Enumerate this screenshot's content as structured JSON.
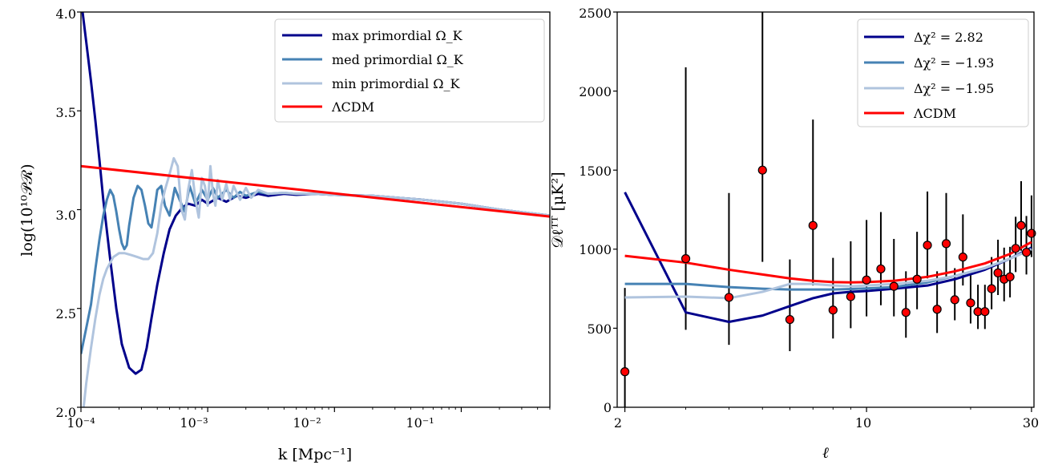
{
  "chart_data": [
    {
      "type": "line",
      "xscale": "log",
      "xlim": [
        0.0001,
        0.5
      ],
      "ylim": [
        2.0,
        4.0
      ],
      "xlabel": "k [Mpc⁻¹]",
      "ylabel": "log(10¹⁰𝒫ℛ)",
      "xticks": [
        0.0001,
        0.001,
        0.01,
        0.1
      ],
      "xtick_labels": [
        "10⁻⁴",
        "10⁻³",
        "10⁻²",
        "10⁻¹"
      ],
      "yticks": [
        2.0,
        2.5,
        3.0,
        3.5,
        4.0
      ],
      "ytick_labels": [
        "2.0",
        "2.5",
        "3.0",
        "3.5",
        "4.0"
      ],
      "legend_position": "top-right",
      "series": [
        {
          "name": "max primordial Ω_K",
          "color": "#00008b",
          "x": [
            0.000103,
            0.00011,
            0.00012,
            0.00013,
            0.00014,
            0.00015,
            0.00017,
            0.00019,
            0.00021,
            0.00024,
            0.00027,
            0.0003,
            0.00033,
            0.00036,
            0.0004,
            0.00045,
            0.0005,
            0.00056,
            0.00063,
            0.0007,
            0.0008,
            0.0009,
            0.001,
            0.0012,
            0.0014,
            0.0017,
            0.002,
            0.0025,
            0.003,
            0.004,
            0.005,
            0.007,
            0.01,
            0.02,
            0.05,
            0.1,
            0.2,
            0.5
          ],
          "y": [
            4.0,
            3.85,
            3.65,
            3.45,
            3.25,
            3.05,
            2.75,
            2.5,
            2.32,
            2.2,
            2.17,
            2.19,
            2.3,
            2.45,
            2.62,
            2.78,
            2.9,
            2.97,
            3.01,
            3.03,
            3.02,
            3.05,
            3.03,
            3.06,
            3.04,
            3.07,
            3.06,
            3.08,
            3.07,
            3.08,
            3.075,
            3.08,
            3.075,
            3.07,
            3.05,
            3.03,
            3.0,
            2.97
          ]
        },
        {
          "name": "med primordial Ω_K",
          "color": "#4682b4",
          "x": [
            0.0001,
            0.00011,
            0.00012,
            0.00013,
            0.00014,
            0.00015,
            0.00016,
            0.00017,
            0.00018,
            0.00019,
            0.0002,
            0.00021,
            0.00022,
            0.00023,
            0.00024,
            0.00026,
            0.00028,
            0.0003,
            0.00032,
            0.00034,
            0.00036,
            0.00038,
            0.0004,
            0.00043,
            0.00046,
            0.0005,
            0.00055,
            0.0006,
            0.00066,
            0.00072,
            0.0008,
            0.0009,
            0.001,
            0.0011,
            0.0012,
            0.0014,
            0.0016,
            0.0018,
            0.002,
            0.0025,
            0.003,
            0.004,
            0.005,
            0.007,
            0.01,
            0.02,
            0.05,
            0.1,
            0.2,
            0.5
          ],
          "y": [
            2.27,
            2.4,
            2.52,
            2.7,
            2.85,
            2.97,
            3.05,
            3.1,
            3.07,
            2.99,
            2.9,
            2.83,
            2.8,
            2.82,
            2.92,
            3.06,
            3.12,
            3.1,
            3.02,
            2.93,
            2.91,
            3.0,
            3.1,
            3.12,
            3.02,
            2.97,
            3.11,
            3.05,
            2.99,
            3.12,
            3.03,
            3.1,
            3.05,
            3.11,
            3.06,
            3.1,
            3.06,
            3.09,
            3.07,
            3.09,
            3.08,
            3.085,
            3.08,
            3.08,
            3.075,
            3.07,
            3.05,
            3.03,
            3.0,
            2.97
          ]
        },
        {
          "name": "min primordial Ω_K",
          "color": "#b0c4de",
          "x": [
            0.000105,
            0.00011,
            0.00012,
            0.00013,
            0.00014,
            0.00015,
            0.00016,
            0.00018,
            0.0002,
            0.00022,
            0.00025,
            0.00028,
            0.00031,
            0.00034,
            0.00037,
            0.0004,
            0.00043,
            0.00046,
            0.0005,
            0.00054,
            0.00058,
            0.00062,
            0.00066,
            0.0007,
            0.00075,
            0.0008,
            0.00085,
            0.0009,
            0.00095,
            0.001,
            0.00105,
            0.0011,
            0.00115,
            0.0012,
            0.0013,
            0.0014,
            0.0015,
            0.0016,
            0.0018,
            0.002,
            0.0022,
            0.0025,
            0.003,
            0.004,
            0.005,
            0.007,
            0.01,
            0.02,
            0.05,
            0.1,
            0.2,
            0.5
          ],
          "y": [
            2.0,
            2.12,
            2.3,
            2.45,
            2.57,
            2.65,
            2.7,
            2.76,
            2.78,
            2.78,
            2.77,
            2.76,
            2.75,
            2.75,
            2.78,
            2.88,
            3.02,
            3.1,
            3.18,
            3.26,
            3.22,
            3.0,
            2.95,
            3.1,
            3.2,
            3.05,
            2.96,
            3.16,
            3.12,
            3.02,
            3.22,
            3.08,
            3.02,
            3.15,
            3.05,
            3.13,
            3.05,
            3.12,
            3.05,
            3.11,
            3.06,
            3.1,
            3.08,
            3.085,
            3.08,
            3.08,
            3.075,
            3.07,
            3.05,
            3.03,
            3.0,
            2.97
          ]
        },
        {
          "name": "ΛCDM",
          "color": "#ff0000",
          "x": [
            0.0001,
            0.5
          ],
          "y": [
            3.22,
            2.965
          ]
        }
      ]
    },
    {
      "type": "line+errorbar",
      "xscale": "log",
      "xlim": [
        1.9,
        30.5
      ],
      "ylim": [
        0,
        2500
      ],
      "xlabel": "ℓ",
      "ylabel": "𝒟ℓᵀᵀ [μK²]",
      "xticks": [
        2,
        10,
        30
      ],
      "xtick_labels": [
        "2",
        "10",
        "30"
      ],
      "yticks": [
        0,
        500,
        1000,
        1500,
        2000,
        2500
      ],
      "ytick_labels": [
        "0",
        "500",
        "1000",
        "1500",
        "2000",
        "2500"
      ],
      "legend_position": "top-right",
      "series": [
        {
          "name": "Δχ² = 2.82",
          "color": "#00008b",
          "x": [
            2,
            3,
            4,
            5,
            6,
            7,
            8,
            9,
            10,
            12,
            15,
            18,
            22,
            26,
            30
          ],
          "y": [
            1360,
            600,
            540,
            580,
            640,
            690,
            720,
            730,
            735,
            750,
            770,
            810,
            870,
            940,
            1010
          ]
        },
        {
          "name": "Δχ² = −1.93",
          "color": "#4682b4",
          "x": [
            2,
            3,
            4,
            5,
            6,
            7,
            8,
            9,
            10,
            12,
            15,
            18,
            22,
            26,
            30
          ],
          "y": [
            780,
            780,
            760,
            750,
            745,
            745,
            745,
            748,
            752,
            760,
            790,
            830,
            880,
            940,
            1000
          ]
        },
        {
          "name": "Δχ² = −1.95",
          "color": "#b0c4de",
          "x": [
            2,
            3,
            4,
            5,
            6,
            7,
            8,
            9,
            10,
            12,
            15,
            18,
            22,
            26,
            30
          ],
          "y": [
            695,
            700,
            690,
            730,
            780,
            780,
            770,
            765,
            770,
            780,
            800,
            830,
            880,
            940,
            1000
          ]
        },
        {
          "name": "ΛCDM",
          "color": "#ff0000",
          "x": [
            2,
            3,
            4,
            5,
            6,
            7,
            8,
            9,
            10,
            12,
            15,
            18,
            22,
            26,
            30
          ],
          "y": [
            958,
            915,
            870,
            840,
            815,
            800,
            792,
            790,
            792,
            800,
            825,
            860,
            910,
            970,
            1045
          ]
        }
      ],
      "points": {
        "color": "#ff0000",
        "ell": [
          2,
          3,
          4,
          5,
          6,
          7,
          8,
          9,
          10,
          11,
          12,
          13,
          14,
          15,
          16,
          17,
          18,
          19,
          20,
          21,
          22,
          23,
          24,
          25,
          26,
          27,
          28,
          29,
          30
        ],
        "value": [
          225,
          940,
          695,
          1500,
          555,
          1150,
          615,
          700,
          805,
          875,
          765,
          600,
          810,
          1025,
          620,
          1035,
          680,
          950,
          660,
          605,
          605,
          750,
          850,
          810,
          825,
          1005,
          1150,
          980,
          1100
        ],
        "err_low": [
          225,
          450,
          300,
          580,
          200,
          380,
          180,
          200,
          230,
          230,
          190,
          160,
          190,
          210,
          150,
          210,
          130,
          180,
          130,
          110,
          110,
          130,
          140,
          140,
          130,
          150,
          160,
          140,
          150
        ],
        "err_high": [
          530,
          1210,
          660,
          1000,
          380,
          670,
          330,
          350,
          380,
          360,
          300,
          260,
          300,
          340,
          240,
          320,
          200,
          270,
          200,
          170,
          170,
          200,
          210,
          200,
          190,
          200,
          280,
          230,
          240
        ]
      }
    }
  ]
}
